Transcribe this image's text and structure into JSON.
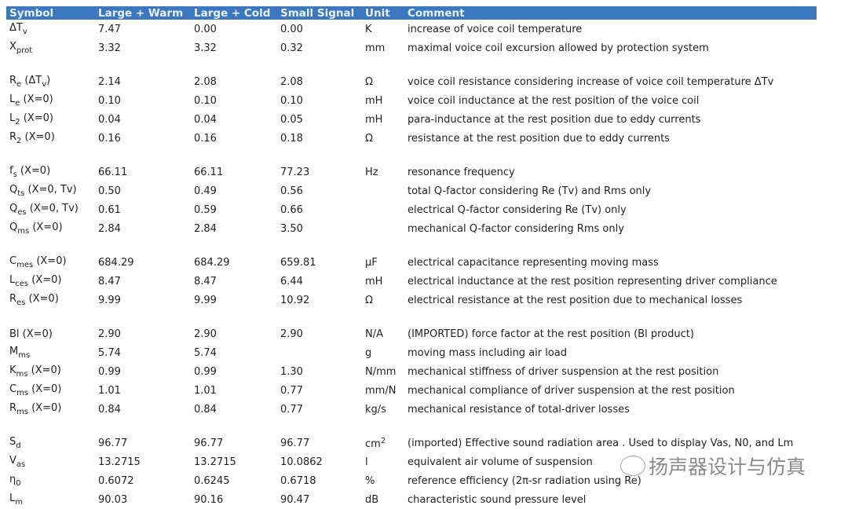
{
  "header": [
    "Symbol",
    "Large + Warm",
    "Large + Cold",
    "Small Signal",
    "Unit",
    "Comment"
  ],
  "header_color": "#3b78bf",
  "rows": [
    {
      "symbol": [
        {
          "t": "ΔT"
        },
        {
          "t": "v",
          "sub": true
        }
      ],
      "lw": "7.47",
      "lc": "0.00",
      "ss": "0.00",
      "unit": [
        {
          "t": "K"
        }
      ],
      "comment": "increase of voice coil temperature"
    },
    {
      "symbol": [
        {
          "t": "X"
        },
        {
          "t": "prot",
          "sub": true
        }
      ],
      "lw": "3.32",
      "lc": "3.32",
      "ss": "0.32",
      "unit": [
        {
          "t": "mm"
        }
      ],
      "comment": "maximal voice coil excursion allowed by protection system"
    },
    {
      "gap": true,
      "symbol": [
        {
          "t": "R"
        },
        {
          "t": "e",
          "sub": true
        },
        {
          "t": " (ΔT"
        },
        {
          "t": "v",
          "sub": true
        },
        {
          "t": ")"
        }
      ],
      "lw": "2.14",
      "lc": "2.08",
      "ss": "2.08",
      "unit": [
        {
          "t": "Ω"
        }
      ],
      "comment": "voice coil resistance considering increase of voice coil temperature ΔTv"
    },
    {
      "symbol": [
        {
          "t": "L"
        },
        {
          "t": "e",
          "sub": true
        },
        {
          "t": " (X=0)"
        }
      ],
      "lw": "0.10",
      "lc": "0.10",
      "ss": "0.10",
      "unit": [
        {
          "t": "mH"
        }
      ],
      "comment": "voice coil inductance at the rest position of the voice coil"
    },
    {
      "symbol": [
        {
          "t": "L"
        },
        {
          "t": "2",
          "sub": true
        },
        {
          "t": " (X=0)"
        }
      ],
      "lw": "0.04",
      "lc": "0.04",
      "ss": "0.05",
      "unit": [
        {
          "t": "mH"
        }
      ],
      "comment": "para-inductance at the rest position due to eddy currents"
    },
    {
      "symbol": [
        {
          "t": "R"
        },
        {
          "t": "2",
          "sub": true
        },
        {
          "t": " (X=0)"
        }
      ],
      "lw": "0.16",
      "lc": "0.16",
      "ss": "0.18",
      "unit": [
        {
          "t": "Ω"
        }
      ],
      "comment": "resistance at the rest position due to eddy currents"
    },
    {
      "gap": true,
      "symbol": [
        {
          "t": "f"
        },
        {
          "t": "s",
          "sub": true
        },
        {
          "t": " (X=0)"
        }
      ],
      "lw": "66.11",
      "lc": "66.11",
      "ss": "77.23",
      "unit": [
        {
          "t": "Hz"
        }
      ],
      "comment": "resonance frequency"
    },
    {
      "symbol": [
        {
          "t": "Q"
        },
        {
          "t": "ts",
          "sub": true
        },
        {
          "t": " (X=0, Tv)"
        }
      ],
      "lw": "0.50",
      "lc": "0.49",
      "ss": "0.56",
      "unit": [],
      "comment": "total Q-factor considering Re (Tv) and Rms only"
    },
    {
      "symbol": [
        {
          "t": "Q"
        },
        {
          "t": "es",
          "sub": true
        },
        {
          "t": " (X=0, Tv)"
        }
      ],
      "lw": "0.61",
      "lc": "0.59",
      "ss": "0.66",
      "unit": [],
      "comment": "electrical Q-factor considering Re (Tv) only"
    },
    {
      "symbol": [
        {
          "t": "Q"
        },
        {
          "t": "ms",
          "sub": true
        },
        {
          "t": " (X=0)"
        }
      ],
      "lw": "2.84",
      "lc": "2.84",
      "ss": "3.50",
      "unit": [],
      "comment": "mechanical Q-factor considering Rms only"
    },
    {
      "gap": true,
      "symbol": [
        {
          "t": "C"
        },
        {
          "t": "mes",
          "sub": true
        },
        {
          "t": " (X=0)"
        }
      ],
      "lw": "684.29",
      "lc": "684.29",
      "ss": "659.81",
      "unit": [
        {
          "t": "µF"
        }
      ],
      "comment": "electrical capacitance representing moving mass"
    },
    {
      "symbol": [
        {
          "t": "L"
        },
        {
          "t": "ces",
          "sub": true
        },
        {
          "t": " (X=0)"
        }
      ],
      "lw": "8.47",
      "lc": "8.47",
      "ss": "6.44",
      "unit": [
        {
          "t": "mH"
        }
      ],
      "comment": "electrical inductance at the rest position representing driver compliance"
    },
    {
      "symbol": [
        {
          "t": "R"
        },
        {
          "t": "es",
          "sub": true
        },
        {
          "t": " (X=0)"
        }
      ],
      "lw": "9.99",
      "lc": "9.99",
      "ss": "10.92",
      "unit": [
        {
          "t": "Ω"
        }
      ],
      "comment": "electrical resistance at the rest position due to mechanical losses"
    },
    {
      "gap": true,
      "symbol": [
        {
          "t": "Bl (X=0)"
        }
      ],
      "lw": "2.90",
      "lc": "2.90",
      "ss": "2.90",
      "unit": [
        {
          "t": "N/A"
        }
      ],
      "comment": "(IMPORTED) force factor at the rest position (Bl product)"
    },
    {
      "symbol": [
        {
          "t": "M"
        },
        {
          "t": "ms",
          "sub": true
        }
      ],
      "lw": "5.74",
      "lc": "5.74",
      "ss": "",
      "unit": [
        {
          "t": "g"
        }
      ],
      "comment": "moving mass including air load"
    },
    {
      "symbol": [
        {
          "t": "K"
        },
        {
          "t": "ms",
          "sub": true
        },
        {
          "t": " (X=0)"
        }
      ],
      "lw": "0.99",
      "lc": "0.99",
      "ss": "1.30",
      "unit": [
        {
          "t": "N/mm"
        }
      ],
      "comment": "mechanical stiffness of driver suspension at the rest position"
    },
    {
      "symbol": [
        {
          "t": "C"
        },
        {
          "t": "ms",
          "sub": true
        },
        {
          "t": " (X=0)"
        }
      ],
      "lw": "1.01",
      "lc": "1.01",
      "ss": "0.77",
      "unit": [
        {
          "t": "mm/N"
        }
      ],
      "comment": "mechanical compliance of driver suspension at the rest position"
    },
    {
      "symbol": [
        {
          "t": "R"
        },
        {
          "t": "ms",
          "sub": true
        },
        {
          "t": " (X=0)"
        }
      ],
      "lw": "0.84",
      "lc": "0.84",
      "ss": "0.77",
      "unit": [
        {
          "t": "kg/s"
        }
      ],
      "comment": "mechanical resistance of total-driver losses"
    },
    {
      "gap": true,
      "symbol": [
        {
          "t": "S"
        },
        {
          "t": "d",
          "sub": true
        }
      ],
      "lw": "96.77",
      "lc": "96.77",
      "ss": "96.77",
      "unit": [
        {
          "t": "cm"
        },
        {
          "t": "2",
          "sup": true
        }
      ],
      "comment": "(imported) Effective sound radiation area . Used to display Vas, N0, and Lm"
    },
    {
      "symbol": [
        {
          "t": "V"
        },
        {
          "t": "as",
          "sub": true
        }
      ],
      "lw": "13.2715",
      "lc": "13.2715",
      "ss": "10.0862",
      "unit": [
        {
          "t": "l"
        }
      ],
      "comment": "equivalent air volume of suspension"
    },
    {
      "symbol": [
        {
          "t": "η"
        },
        {
          "t": "0",
          "sub": true
        }
      ],
      "lw": "0.6072",
      "lc": "0.6245",
      "ss": "0.6718",
      "unit": [
        {
          "t": "%"
        }
      ],
      "comment": "reference efficiency (2π-sr radiation using Re)"
    },
    {
      "symbol": [
        {
          "t": "L"
        },
        {
          "t": "m",
          "sub": true
        }
      ],
      "lw": "90.03",
      "lc": "90.16",
      "ss": "90.47",
      "unit": [
        {
          "t": "dB"
        }
      ],
      "comment": "characteristic sound pressure level"
    }
  ],
  "watermark": "扬声器设计与仿真"
}
